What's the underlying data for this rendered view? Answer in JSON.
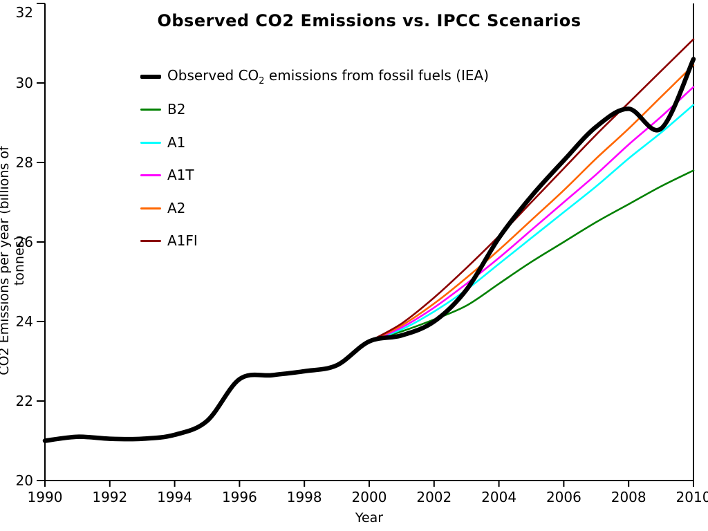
{
  "chart_data": {
    "type": "line",
    "title": "Observed CO2 Emissions vs. IPCC Scenarios",
    "xlabel": "Year",
    "ylabel": "CO2 Emissions per year (billions of tonnes)",
    "xlim": [
      1990,
      2010
    ],
    "ylim": [
      20,
      32
    ],
    "x_ticks": [
      1990,
      1992,
      1994,
      1996,
      1998,
      2000,
      2002,
      2004,
      2006,
      2008,
      2010
    ],
    "y_ticks": [
      20,
      22,
      24,
      26,
      28,
      30,
      32
    ],
    "grid": false,
    "legend_position": "upper-left-inside",
    "series": [
      {
        "id": "observed",
        "name": "Observed CO2 emissions from fossil fuels (IEA)",
        "color": "#000000",
        "line_width": 6.5,
        "x": [
          1990,
          1991,
          1992,
          1993,
          1994,
          1995,
          1996,
          1997,
          1998,
          1999,
          2000,
          2001,
          2002,
          2003,
          2004,
          2005,
          2006,
          2007,
          2008,
          2009,
          2010
        ],
        "values": [
          21.0,
          21.1,
          21.05,
          21.05,
          21.15,
          21.5,
          22.55,
          22.65,
          22.75,
          22.9,
          23.5,
          23.65,
          24.0,
          24.8,
          26.1,
          27.15,
          28.05,
          28.9,
          29.35,
          28.85,
          30.6
        ]
      },
      {
        "id": "b2",
        "name": "B2",
        "color": "#008000",
        "line_width": 2.6,
        "x": [
          2000,
          2001,
          2002,
          2003,
          2004,
          2005,
          2006,
          2007,
          2008,
          2009,
          2010
        ],
        "values": [
          23.5,
          23.75,
          24.05,
          24.4,
          24.95,
          25.5,
          26.0,
          26.5,
          26.95,
          27.4,
          27.8
        ]
      },
      {
        "id": "a1",
        "name": "A1",
        "color": "#00ffff",
        "line_width": 2.6,
        "x": [
          2000,
          2001,
          2002,
          2003,
          2004,
          2005,
          2006,
          2007,
          2008,
          2009,
          2010
        ],
        "values": [
          23.5,
          23.8,
          24.25,
          24.8,
          25.45,
          26.1,
          26.75,
          27.4,
          28.1,
          28.75,
          29.45
        ]
      },
      {
        "id": "a1t",
        "name": "A1T",
        "color": "#ff00ff",
        "line_width": 2.6,
        "x": [
          2000,
          2001,
          2002,
          2003,
          2004,
          2005,
          2006,
          2007,
          2008,
          2009,
          2010
        ],
        "values": [
          23.5,
          23.85,
          24.35,
          24.95,
          25.6,
          26.3,
          27.0,
          27.7,
          28.45,
          29.15,
          29.9
        ]
      },
      {
        "id": "a2",
        "name": "A2",
        "color": "#ff6600",
        "line_width": 2.6,
        "x": [
          2000,
          2001,
          2002,
          2003,
          2004,
          2005,
          2006,
          2007,
          2008,
          2009,
          2010
        ],
        "values": [
          23.5,
          23.9,
          24.45,
          25.1,
          25.8,
          26.55,
          27.3,
          28.1,
          28.85,
          29.65,
          30.45
        ]
      },
      {
        "id": "a1fi",
        "name": "A1FI",
        "color": "#8b0000",
        "line_width": 2.6,
        "x": [
          2000,
          2001,
          2002,
          2003,
          2004,
          2005,
          2006,
          2007,
          2008,
          2009,
          2010
        ],
        "values": [
          23.5,
          23.95,
          24.6,
          25.35,
          26.15,
          27.0,
          27.85,
          28.7,
          29.5,
          30.3,
          31.1
        ]
      }
    ],
    "legend": [
      {
        "series": "observed",
        "pre": "Observed CO",
        "sub": "2",
        "post": " emissions from fossil fuels (IEA)",
        "swatch_height": 6
      },
      {
        "series": "b2",
        "pre": "B2",
        "sub": "",
        "post": "",
        "swatch_height": 3
      },
      {
        "series": "a1",
        "pre": "A1",
        "sub": "",
        "post": "",
        "swatch_height": 3
      },
      {
        "series": "a1t",
        "pre": "A1T",
        "sub": "",
        "post": "",
        "swatch_height": 3
      },
      {
        "series": "a2",
        "pre": "A2",
        "sub": "",
        "post": "",
        "swatch_height": 3
      },
      {
        "series": "a1fi",
        "pre": "A1FI",
        "sub": "",
        "post": "",
        "swatch_height": 3
      }
    ],
    "axis_color": "#000000",
    "background_color": "#ffffff"
  }
}
